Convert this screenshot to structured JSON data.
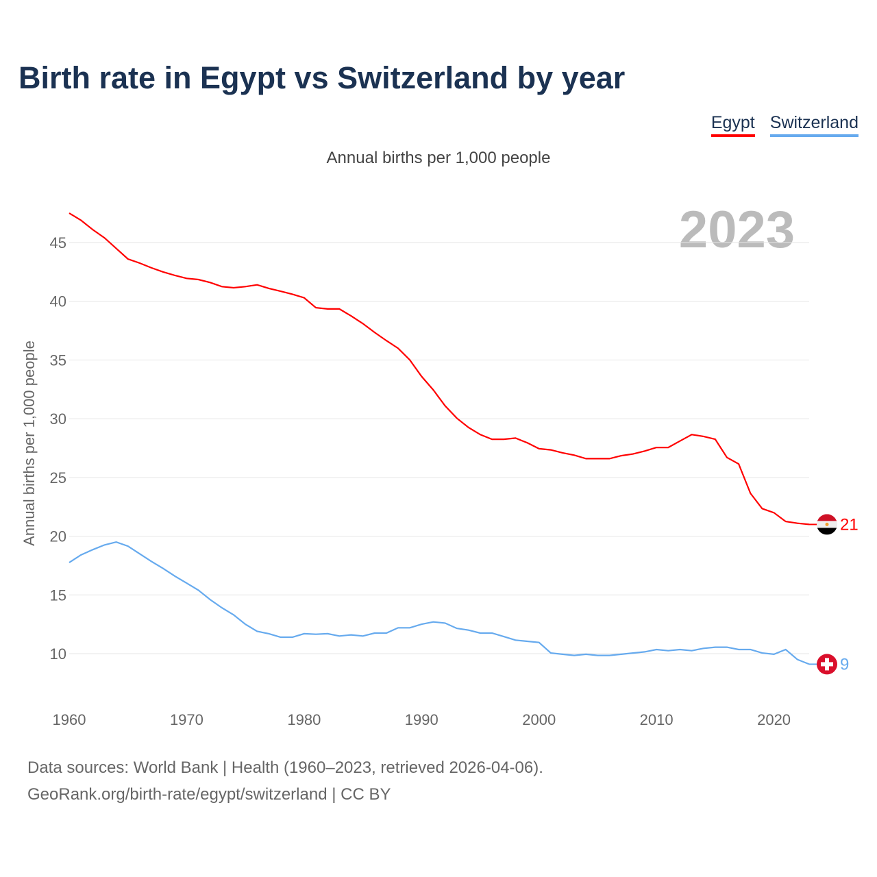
{
  "title": "Birth rate in Egypt vs Switzerland by year",
  "legend": [
    {
      "name": "Egypt",
      "color": "#ff0000"
    },
    {
      "name": "Switzerland",
      "color": "#66aaee"
    }
  ],
  "subtitle": "Annual births per 1,000 people",
  "year_watermark": "2023",
  "footer": {
    "line1": "Data sources: World Bank | Health (1960–2023, retrieved 2026-04-06).",
    "line2": "GeoRank.org/birth-rate/egypt/switzerland | CC BY"
  },
  "flag_lettering": {
    "egypt_flag": "Egypt eagle",
    "switzerland_flag": "Switzerland cross"
  },
  "chart_data": {
    "type": "line",
    "title": "Birth rate in Egypt vs Switzerland by year",
    "xlabel": "",
    "ylabel": "Annual births per 1,000 people",
    "xlim": [
      1960,
      2023
    ],
    "ylim": [
      5,
      48
    ],
    "xticks": [
      1960,
      1970,
      1980,
      1990,
      2000,
      2010,
      2020
    ],
    "yticks": [
      10,
      15,
      20,
      25,
      30,
      35,
      40,
      45
    ],
    "grid": true,
    "legend_position": "top-right",
    "x": [
      1960,
      1961,
      1962,
      1963,
      1964,
      1965,
      1966,
      1967,
      1968,
      1969,
      1970,
      1971,
      1972,
      1973,
      1974,
      1975,
      1976,
      1977,
      1978,
      1979,
      1980,
      1981,
      1982,
      1983,
      1984,
      1985,
      1986,
      1987,
      1988,
      1989,
      1990,
      1991,
      1992,
      1993,
      1994,
      1995,
      1996,
      1997,
      1998,
      1999,
      2000,
      2001,
      2002,
      2003,
      2004,
      2005,
      2006,
      2007,
      2008,
      2009,
      2010,
      2011,
      2012,
      2013,
      2014,
      2015,
      2016,
      2017,
      2018,
      2019,
      2020,
      2021,
      2022,
      2023
    ],
    "series": [
      {
        "name": "Egypt",
        "color": "#ff0000",
        "end_label": "21",
        "values": [
          47.5,
          46.9,
          46.1,
          45.4,
          44.5,
          43.6,
          43.25,
          42.85,
          42.5,
          42.2,
          41.95,
          41.85,
          41.6,
          41.25,
          41.15,
          41.25,
          41.4,
          41.1,
          40.85,
          40.6,
          40.3,
          39.45,
          39.35,
          39.35,
          38.75,
          38.1,
          37.35,
          36.65,
          36.0,
          35.0,
          33.6,
          32.45,
          31.1,
          30.05,
          29.25,
          28.65,
          28.25,
          28.25,
          28.35,
          27.95,
          27.45,
          27.35,
          27.1,
          26.9,
          26.6,
          26.6,
          26.6,
          26.85,
          27.0,
          27.25,
          27.55,
          27.55,
          28.1,
          28.65,
          28.5,
          28.25,
          26.7,
          26.15,
          23.65,
          22.35,
          22.0,
          21.25,
          21.1,
          21.0
        ]
      },
      {
        "name": "Switzerland",
        "color": "#66aaee",
        "end_label": "9",
        "values": [
          17.75,
          18.4,
          18.85,
          19.25,
          19.5,
          19.15,
          18.5,
          17.85,
          17.25,
          16.6,
          16.0,
          15.4,
          14.6,
          13.9,
          13.3,
          12.5,
          11.9,
          11.7,
          11.4,
          11.4,
          11.7,
          11.65,
          11.7,
          11.5,
          11.6,
          11.5,
          11.75,
          11.75,
          12.2,
          12.2,
          12.5,
          12.7,
          12.6,
          12.15,
          12.0,
          11.75,
          11.75,
          11.45,
          11.15,
          11.05,
          10.95,
          10.05,
          9.95,
          9.85,
          9.95,
          9.85,
          9.85,
          9.95,
          10.05,
          10.15,
          10.35,
          10.25,
          10.35,
          10.25,
          10.45,
          10.55,
          10.55,
          10.35,
          10.35,
          10.05,
          9.95,
          10.35,
          9.5,
          9.1
        ]
      }
    ]
  }
}
